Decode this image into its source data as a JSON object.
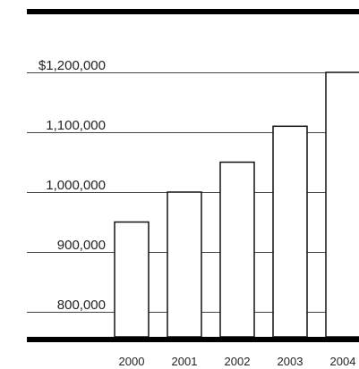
{
  "chart_data": {
    "type": "bar",
    "categories": [
      "2000",
      "2001",
      "2002",
      "2003",
      "2004"
    ],
    "values": [
      950000,
      1000000,
      1050000,
      1110000,
      1200000
    ],
    "y_tick_labels": [
      "$1,200,000",
      "1,100,000",
      "1,000,000",
      "900,000",
      "800,000"
    ],
    "y_tick_values": [
      1200000,
      1100000,
      1000000,
      900000,
      800000
    ],
    "ylim": [
      740000,
      1300000
    ],
    "grid": true,
    "colors": {
      "bar_fill": "#ffffff",
      "bar_stroke": "#111111",
      "grid": "#444444",
      "heavy_rule": "#000000"
    }
  }
}
